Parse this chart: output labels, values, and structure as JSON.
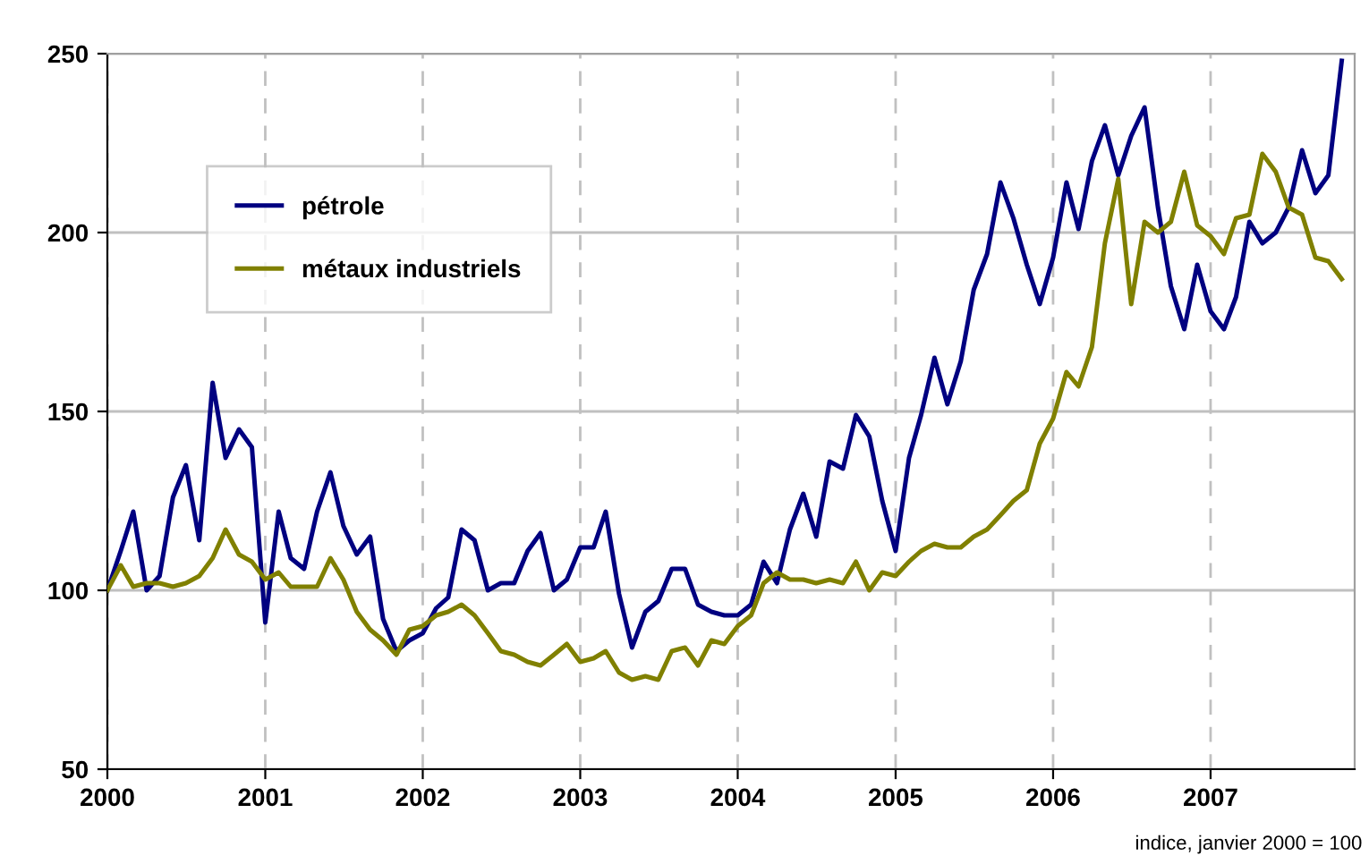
{
  "chart_data": {
    "type": "line",
    "x": [
      "2000-01",
      "2000-02",
      "2000-03",
      "2000-04",
      "2000-05",
      "2000-06",
      "2000-07",
      "2000-08",
      "2000-09",
      "2000-10",
      "2000-11",
      "2000-12",
      "2001-01",
      "2001-02",
      "2001-03",
      "2001-04",
      "2001-05",
      "2001-06",
      "2001-07",
      "2001-08",
      "2001-09",
      "2001-10",
      "2001-11",
      "2001-12",
      "2002-01",
      "2002-02",
      "2002-03",
      "2002-04",
      "2002-05",
      "2002-06",
      "2002-07",
      "2002-08",
      "2002-09",
      "2002-10",
      "2002-11",
      "2002-12",
      "2003-01",
      "2003-02",
      "2003-03",
      "2003-04",
      "2003-05",
      "2003-06",
      "2003-07",
      "2003-08",
      "2003-09",
      "2003-10",
      "2003-11",
      "2003-12",
      "2004-01",
      "2004-02",
      "2004-03",
      "2004-04",
      "2004-05",
      "2004-06",
      "2004-07",
      "2004-08",
      "2004-09",
      "2004-10",
      "2004-11",
      "2004-12",
      "2005-01",
      "2005-02",
      "2005-03",
      "2005-04",
      "2005-05",
      "2005-06",
      "2005-07",
      "2005-08",
      "2005-09",
      "2005-10",
      "2005-11",
      "2005-12",
      "2006-01",
      "2006-02",
      "2006-03",
      "2006-04",
      "2006-05",
      "2006-06",
      "2006-07",
      "2006-08",
      "2006-09",
      "2006-10",
      "2006-11",
      "2006-12",
      "2007-01",
      "2007-02",
      "2007-03",
      "2007-04",
      "2007-05",
      "2007-06",
      "2007-07",
      "2007-08",
      "2007-09",
      "2007-10",
      "2007-11"
    ],
    "series": [
      {
        "name": "pétrole",
        "color": "#000080",
        "values": [
          100,
          111,
          122,
          100,
          104,
          126,
          135,
          114,
          158,
          137,
          145,
          140,
          91,
          122,
          109,
          106,
          122,
          133,
          118,
          110,
          115,
          92,
          83,
          86,
          88,
          95,
          98,
          117,
          114,
          100,
          102,
          102,
          111,
          116,
          100,
          103,
          112,
          112,
          122,
          99,
          84,
          94,
          97,
          106,
          106,
          96,
          94,
          93,
          93,
          96,
          108,
          102,
          117,
          127,
          115,
          136,
          134,
          149,
          143,
          125,
          111,
          137,
          149,
          165,
          152,
          164,
          184,
          194,
          214,
          204,
          191,
          180,
          193,
          214,
          201,
          220,
          230,
          216,
          227,
          235,
          207,
          185,
          173,
          191,
          178,
          173,
          182,
          203,
          197,
          200,
          207,
          223,
          211,
          216,
          248
        ]
      },
      {
        "name": "métaux industriels",
        "color": "#808000",
        "values": [
          100,
          107,
          101,
          102,
          102,
          101,
          102,
          104,
          109,
          117,
          110,
          108,
          103,
          105,
          101,
          101,
          101,
          109,
          103,
          94,
          89,
          86,
          82,
          89,
          90,
          93,
          94,
          96,
          93,
          88,
          83,
          82,
          80,
          79,
          82,
          85,
          80,
          81,
          83,
          77,
          75,
          76,
          75,
          83,
          84,
          79,
          86,
          85,
          90,
          93,
          102,
          105,
          103,
          103,
          102,
          103,
          102,
          108,
          100,
          105,
          104,
          108,
          111,
          113,
          112,
          112,
          115,
          117,
          121,
          125,
          128,
          141,
          148,
          161,
          157,
          168,
          197,
          215,
          180,
          203,
          200,
          203,
          217,
          202,
          199,
          194,
          204,
          205,
          222,
          217,
          207,
          205,
          193,
          192,
          187
        ]
      }
    ],
    "xlim": [
      "2000-01",
      "2007-12"
    ],
    "xticks": [
      "2000",
      "2001",
      "2002",
      "2003",
      "2004",
      "2005",
      "2006",
      "2007"
    ],
    "ylim": [
      50,
      250
    ],
    "yticks": [
      50,
      100,
      150,
      200,
      250
    ],
    "grid": true,
    "legend": "top left",
    "line_style": "solid",
    "marker": "none",
    "annotations": [
      "indice, janvier 2000 = 100"
    ]
  }
}
